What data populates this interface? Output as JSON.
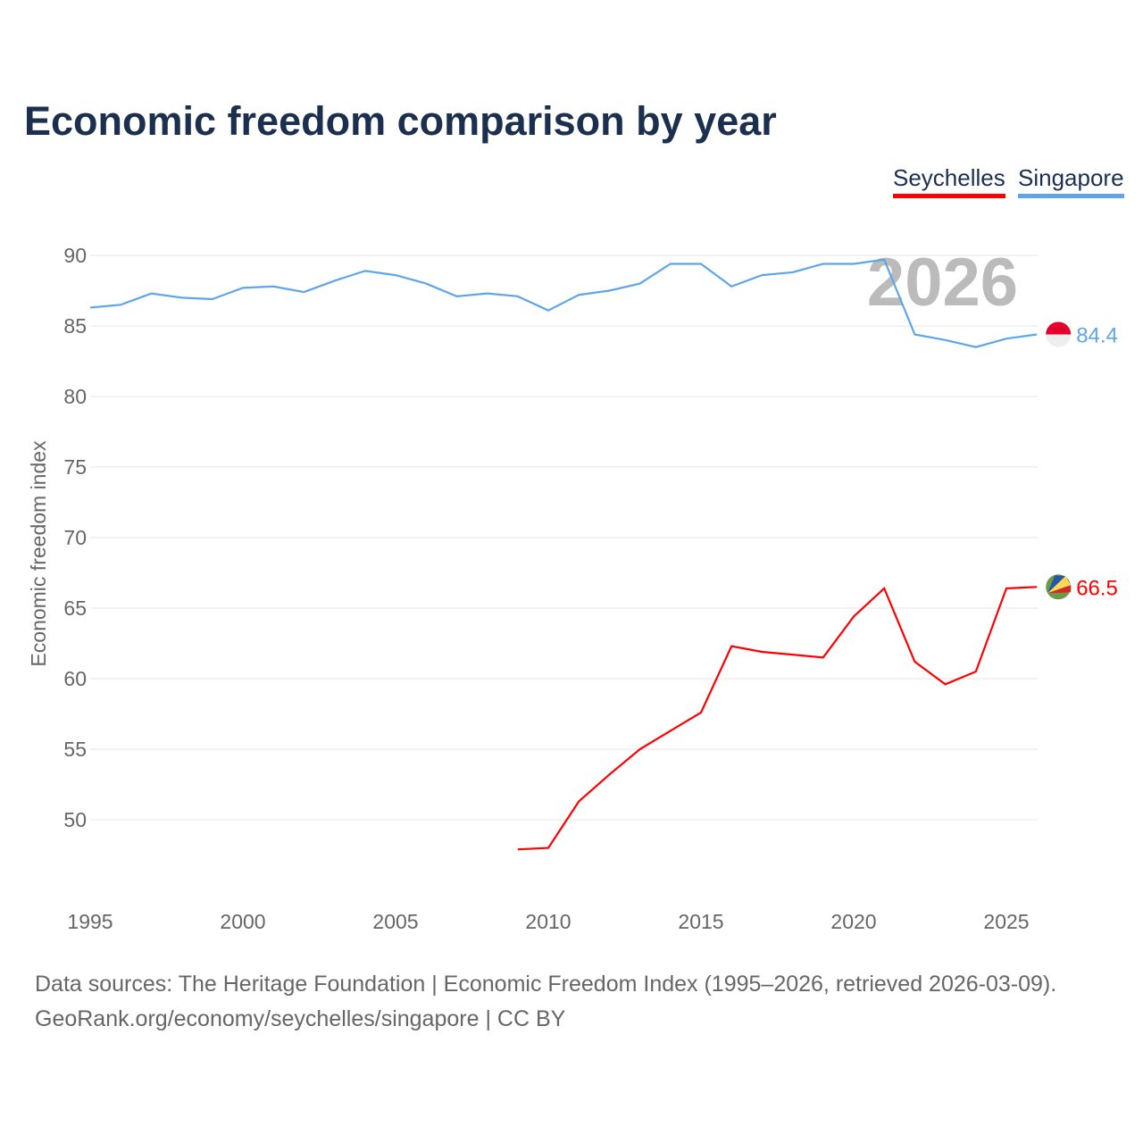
{
  "chart_data": {
    "type": "line",
    "title": "Economic freedom comparison by year",
    "ylabel": "Economic freedom index",
    "xlabel": "",
    "ylim": [
      44,
      92
    ],
    "xlim": [
      1995,
      2026
    ],
    "yticks": [
      50,
      55,
      60,
      65,
      70,
      75,
      80,
      85,
      90
    ],
    "xticks": [
      1995,
      2000,
      2005,
      2010,
      2015,
      2020,
      2025
    ],
    "grid": true,
    "legend_position": "top-right",
    "year_label": "2026",
    "series": [
      {
        "name": "Seychelles",
        "color": "#ff0000",
        "end_label": "66.5",
        "x": [
          2009,
          2010,
          2011,
          2012,
          2013,
          2014,
          2015,
          2016,
          2017,
          2018,
          2019,
          2020,
          2021,
          2022,
          2023,
          2024,
          2025,
          2026
        ],
        "values": [
          47.9,
          48.0,
          51.3,
          53.2,
          55.0,
          56.3,
          57.6,
          62.3,
          61.9,
          61.7,
          61.5,
          64.4,
          66.4,
          61.2,
          59.6,
          60.5,
          66.4,
          66.5
        ]
      },
      {
        "name": "Singapore",
        "color": "#5fa5ea",
        "end_label": "84.4",
        "x": [
          1995,
          1996,
          1997,
          1998,
          1999,
          2000,
          2001,
          2002,
          2003,
          2004,
          2005,
          2006,
          2007,
          2008,
          2009,
          2010,
          2011,
          2012,
          2013,
          2014,
          2015,
          2016,
          2017,
          2018,
          2019,
          2020,
          2021,
          2022,
          2023,
          2024,
          2025,
          2026
        ],
        "values": [
          86.3,
          86.5,
          87.3,
          87.0,
          86.9,
          87.7,
          87.8,
          87.4,
          88.2,
          88.9,
          88.6,
          88.0,
          87.1,
          87.3,
          87.1,
          86.1,
          87.2,
          87.5,
          88.0,
          89.4,
          89.4,
          87.8,
          88.6,
          88.8,
          89.4,
          89.4,
          89.7,
          84.4,
          84.0,
          83.5,
          84.1,
          84.4
        ]
      }
    ]
  },
  "footer": {
    "line1": "Data sources: The Heritage Foundation | Economic Freedom Index (1995–2026, retrieved 2026-03-09).",
    "line2": "GeoRank.org/economy/seychelles/singapore | CC BY"
  }
}
